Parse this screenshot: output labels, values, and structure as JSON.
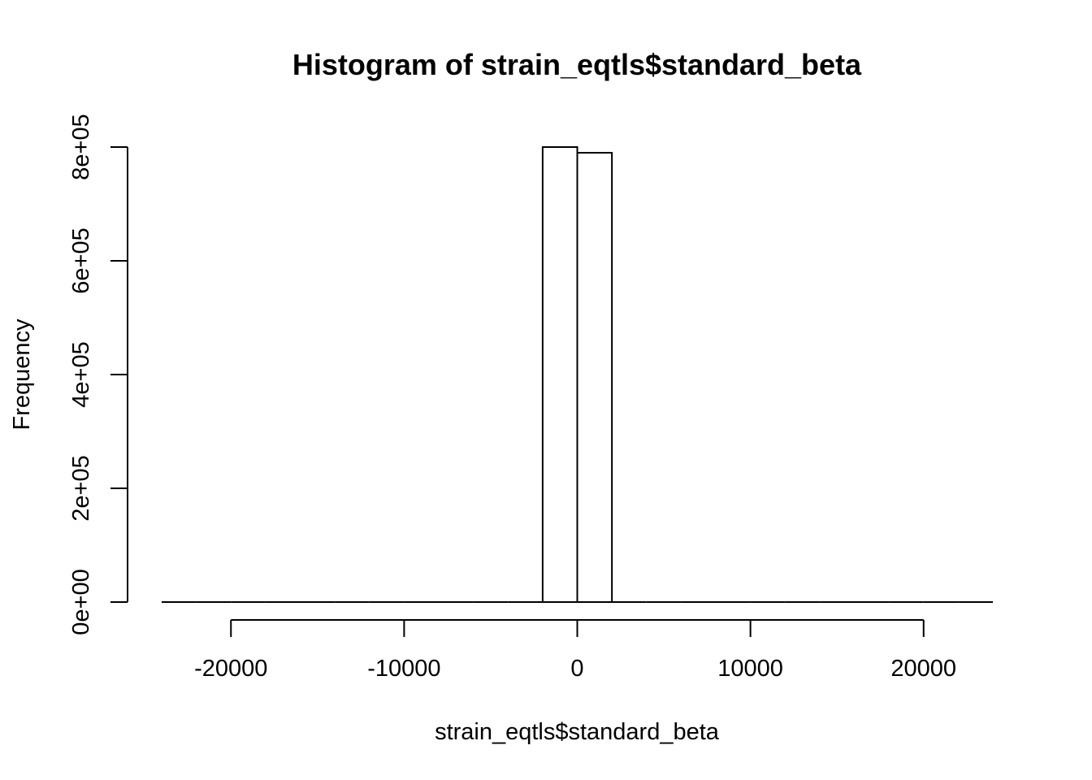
{
  "chart_data": {
    "type": "bar",
    "title": "Histogram of strain_eqtls$standard_beta",
    "xlabel": "strain_eqtls$standard_beta",
    "ylabel": "Frequency",
    "xlim": [
      -24000,
      24000
    ],
    "ylim": [
      0,
      800000
    ],
    "x_ticks": [
      -20000,
      -10000,
      0,
      10000,
      20000
    ],
    "x_tick_labels": [
      "-20000",
      "-10000",
      "0",
      "10000",
      "20000"
    ],
    "y_ticks": [
      0,
      200000,
      400000,
      600000,
      800000
    ],
    "y_tick_labels": [
      "0e+00",
      "2e+05",
      "4e+05",
      "6e+05",
      "8e+05"
    ],
    "bin_width": 2000,
    "bins": [
      {
        "start": -24000,
        "end": -22000,
        "count": 0
      },
      {
        "start": -22000,
        "end": -20000,
        "count": 0
      },
      {
        "start": -20000,
        "end": -18000,
        "count": 0
      },
      {
        "start": -18000,
        "end": -16000,
        "count": 0
      },
      {
        "start": -16000,
        "end": -14000,
        "count": 0
      },
      {
        "start": -14000,
        "end": -12000,
        "count": 0
      },
      {
        "start": -12000,
        "end": -10000,
        "count": 0
      },
      {
        "start": -10000,
        "end": -8000,
        "count": 0
      },
      {
        "start": -8000,
        "end": -6000,
        "count": 0
      },
      {
        "start": -6000,
        "end": -4000,
        "count": 0
      },
      {
        "start": -4000,
        "end": -2000,
        "count": 0
      },
      {
        "start": -2000,
        "end": 0,
        "count": 800000
      },
      {
        "start": 0,
        "end": 2000,
        "count": 790000
      },
      {
        "start": 2000,
        "end": 4000,
        "count": 0
      },
      {
        "start": 4000,
        "end": 6000,
        "count": 0
      },
      {
        "start": 6000,
        "end": 8000,
        "count": 0
      },
      {
        "start": 8000,
        "end": 10000,
        "count": 0
      },
      {
        "start": 10000,
        "end": 12000,
        "count": 0
      },
      {
        "start": 12000,
        "end": 14000,
        "count": 0
      },
      {
        "start": 14000,
        "end": 16000,
        "count": 0
      },
      {
        "start": 16000,
        "end": 18000,
        "count": 0
      },
      {
        "start": 18000,
        "end": 20000,
        "count": 0
      },
      {
        "start": 20000,
        "end": 22000,
        "count": 0
      },
      {
        "start": 22000,
        "end": 24000,
        "count": 0
      }
    ],
    "grid": false,
    "colors": {
      "bar_fill": "#ffffff",
      "bar_stroke": "#000000"
    }
  }
}
